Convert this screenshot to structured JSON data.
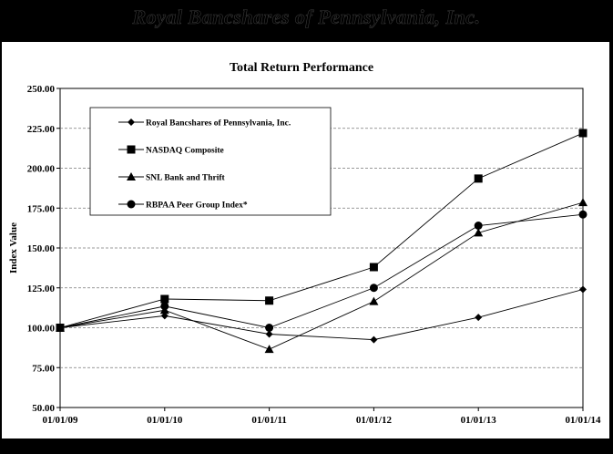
{
  "banner": {
    "title": "Royal Bancshares of Pennsylvania, Inc."
  },
  "chart_data": {
    "type": "line",
    "title": "Total Return Performance",
    "xlabel": "",
    "ylabel": "Index Value",
    "categories": [
      "01/01/09",
      "01/01/10",
      "01/01/11",
      "01/01/12",
      "01/01/13",
      "01/01/14"
    ],
    "ylim": [
      50,
      250
    ],
    "yticks": [
      "50.00",
      "75.00",
      "100.00",
      "125.00",
      "150.00",
      "175.00",
      "200.00",
      "225.00",
      "250.00"
    ],
    "grid": "horizontal dashed",
    "legend": "top-left inside plot",
    "series": [
      {
        "name": "Royal Bancshares of Pennsylvania, Inc.",
        "marker": "diamond",
        "values": [
          100.0,
          107.5,
          96.0,
          92.5,
          106.5,
          124.0
        ]
      },
      {
        "name": "NASDAQ Composite",
        "marker": "square",
        "values": [
          100.0,
          118.0,
          117.0,
          138.0,
          193.5,
          222.0
        ]
      },
      {
        "name": "SNL Bank and Thrift",
        "marker": "triangle",
        "values": [
          100.0,
          111.0,
          86.5,
          116.5,
          159.5,
          178.5
        ]
      },
      {
        "name": "RBPAA Peer Group Index*",
        "marker": "circle",
        "values": [
          100.0,
          113.5,
          100.0,
          125.0,
          164.0,
          171.0
        ]
      }
    ]
  }
}
